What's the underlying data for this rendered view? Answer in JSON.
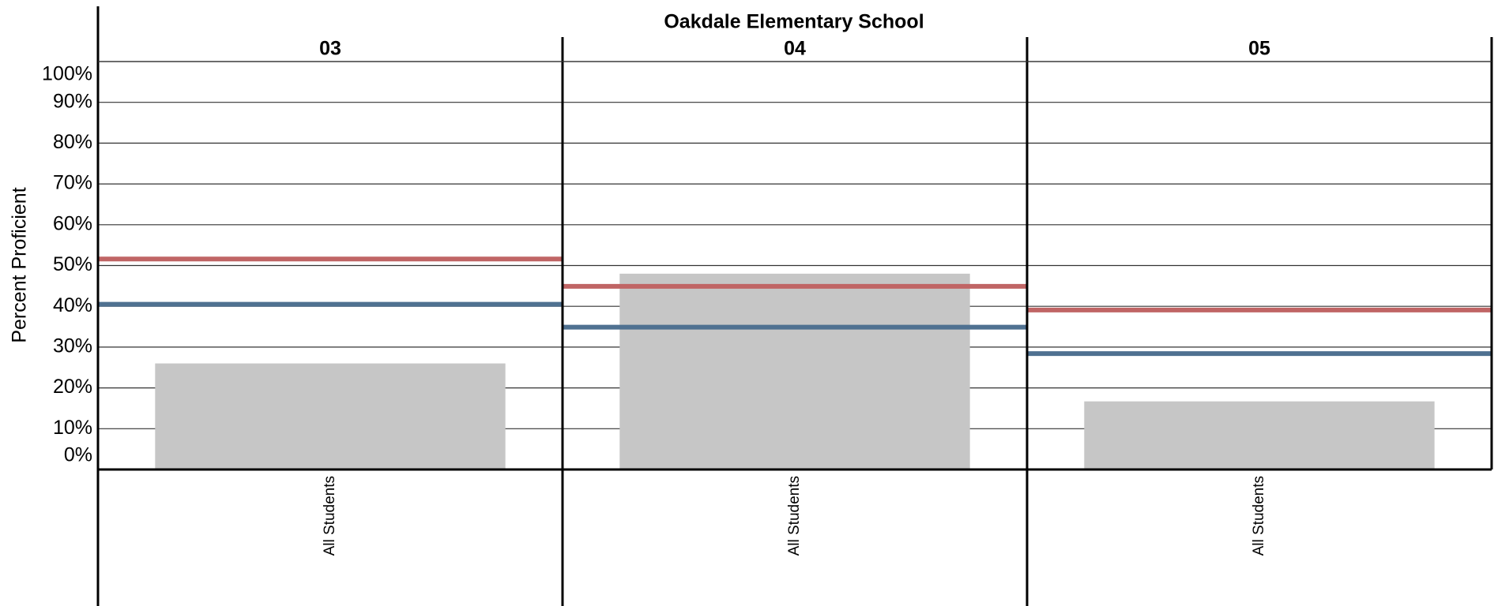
{
  "chart_data": {
    "type": "bar",
    "title": "Oakdale Elementary School",
    "y_label": "Percent Proficient",
    "ylim": [
      0,
      100
    ],
    "yticks": [
      {
        "value": 0,
        "label": "0%"
      },
      {
        "value": 10,
        "label": "10%"
      },
      {
        "value": 20,
        "label": "20%"
      },
      {
        "value": 30,
        "label": "30%"
      },
      {
        "value": 40,
        "label": "40%"
      },
      {
        "value": 50,
        "label": "50%"
      },
      {
        "value": 60,
        "label": "60%"
      },
      {
        "value": 70,
        "label": "70%"
      },
      {
        "value": 80,
        "label": "80%"
      },
      {
        "value": 90,
        "label": "90%"
      },
      {
        "value": 100,
        "label": "100%"
      }
    ],
    "grid": true,
    "bar_color": "#c6c6c6",
    "reference_colors": [
      "#c06565",
      "#4f7191"
    ],
    "panels": [
      {
        "title": "03",
        "categories": [
          "All Students"
        ],
        "values": [
          26
        ],
        "reference_values": [
          51.6,
          40.5
        ]
      },
      {
        "title": "04",
        "categories": [
          "All Students"
        ],
        "values": [
          48
        ],
        "reference_values": [
          44.9,
          34.9
        ]
      },
      {
        "title": "05",
        "categories": [
          "All Students"
        ],
        "values": [
          16.7
        ],
        "reference_values": [
          39.1,
          28.4
        ]
      }
    ]
  }
}
